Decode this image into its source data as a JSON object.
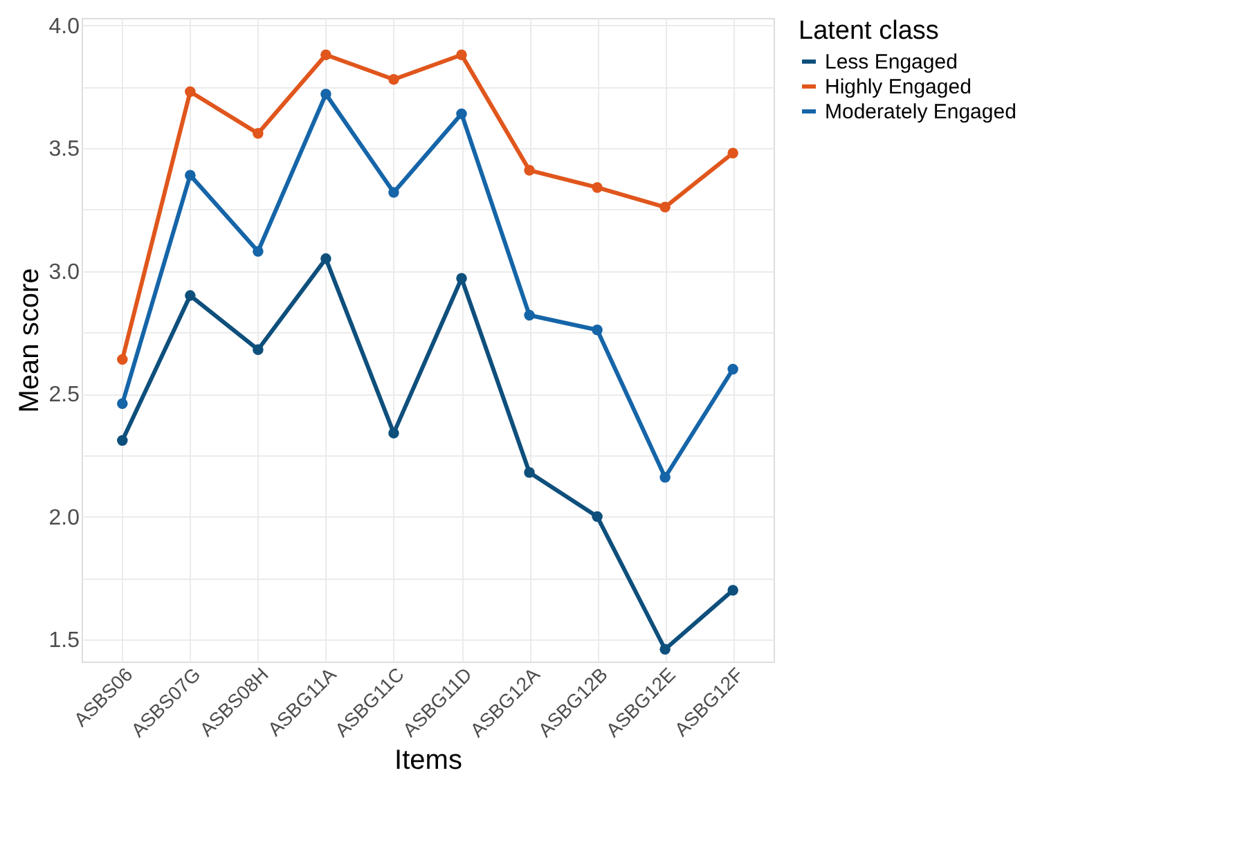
{
  "chart_data": {
    "type": "line",
    "xlabel": "Items",
    "ylabel": "Mean score",
    "legend_title": "Latent class",
    "categories": [
      "ASBS06",
      "ASBS07G",
      "ASBS08H",
      "ASBG11A",
      "ASBG11C",
      "ASBG11D",
      "ASBG12A",
      "ASBG12B",
      "ASBG12E",
      "ASBG12F"
    ],
    "series": [
      {
        "name": "Less Engaged",
        "color": "#0e4f7c",
        "values": [
          2.31,
          2.9,
          2.68,
          3.05,
          2.34,
          2.97,
          2.18,
          2.0,
          1.46,
          1.7
        ]
      },
      {
        "name": "Highly Engaged",
        "color": "#e0561c",
        "values": [
          2.64,
          3.73,
          3.56,
          3.88,
          3.78,
          3.88,
          3.41,
          3.34,
          3.26,
          3.48
        ]
      },
      {
        "name": "Moderately Engaged",
        "color": "#1565a8",
        "values": [
          2.46,
          3.39,
          3.08,
          3.72,
          3.32,
          3.64,
          2.82,
          2.76,
          2.16,
          2.6
        ]
      }
    ],
    "ylim": [
      1.41,
      4.03
    ],
    "yticks": [
      1.5,
      {
        "value": 1.75,
        "label": null
      },
      {
        "value": 2,
        "label": "2.0"
      },
      {
        "value": 2.25,
        "label": null
      },
      2.5,
      {
        "value": 2.75,
        "label": null
      },
      {
        "value": 3,
        "label": "3.0"
      },
      {
        "value": 3.25,
        "label": null
      },
      3.5,
      {
        "value": 3.75,
        "label": null
      },
      {
        "value": 4,
        "label": "4.0"
      }
    ],
    "grid": true,
    "legend": "right",
    "marker": "circle",
    "line_style": "solid"
  }
}
